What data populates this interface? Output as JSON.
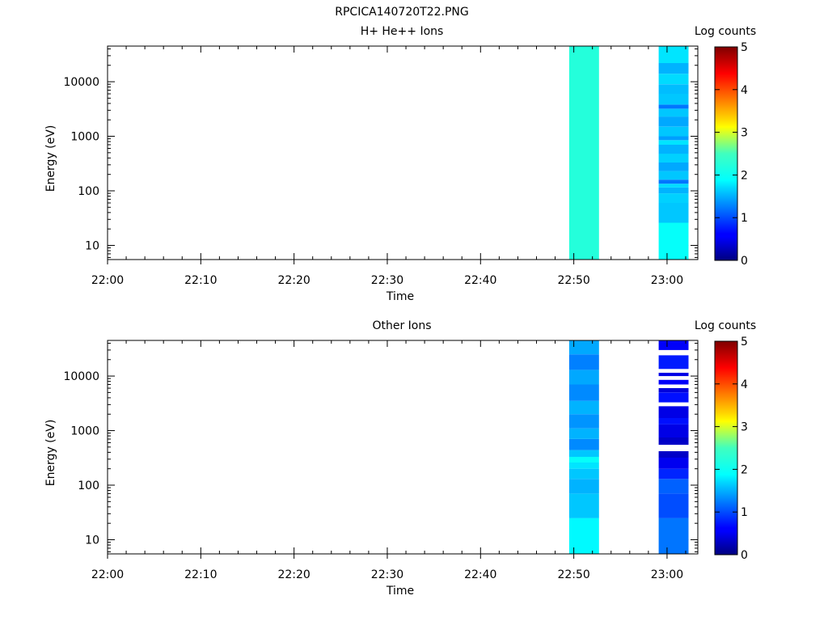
{
  "title": "RPCICA140720T22.PNG",
  "colorbar": {
    "label": "Log counts",
    "range": [
      0,
      5
    ],
    "ticks": [
      "0",
      "1",
      "2",
      "3",
      "4",
      "5"
    ]
  },
  "chart_data": [
    {
      "type": "heatmap",
      "title": "H+ He++ Ions",
      "xlabel": "Time",
      "ylabel": "Energy (eV)",
      "x_ticks": [
        "22:00",
        "22:10",
        "22:20",
        "22:30",
        "22:40",
        "22:50",
        "23:00"
      ],
      "y_ticks": [
        "10",
        "100",
        "1000",
        "10000"
      ],
      "yscale": "log",
      "ylim": [
        5.5,
        45000
      ],
      "colorscale": "jet",
      "zlim": [
        0,
        5
      ],
      "columns": [
        {
          "time_start": "22:49.5",
          "time_end": "22:52.7",
          "bins": [
            {
              "e_low": 5.5,
              "e_high": 45000,
              "log_counts": 2.05
            }
          ]
        },
        {
          "time_start": "22:59.1",
          "time_end": "23:02.3",
          "bins": [
            {
              "e_low": 5.5,
              "e_high": 26,
              "log_counts": 1.9
            },
            {
              "e_low": 26,
              "e_high": 60,
              "log_counts": 1.6
            },
            {
              "e_low": 60,
              "e_high": 90,
              "log_counts": 1.65
            },
            {
              "e_low": 90,
              "e_high": 115,
              "log_counts": 1.5
            },
            {
              "e_low": 115,
              "e_high": 135,
              "log_counts": 1.7
            },
            {
              "e_low": 135,
              "e_high": 160,
              "log_counts": 1.2
            },
            {
              "e_low": 160,
              "e_high": 230,
              "log_counts": 1.6
            },
            {
              "e_low": 230,
              "e_high": 330,
              "log_counts": 1.45
            },
            {
              "e_low": 330,
              "e_high": 480,
              "log_counts": 1.65
            },
            {
              "e_low": 480,
              "e_high": 700,
              "log_counts": 1.5
            },
            {
              "e_low": 700,
              "e_high": 850,
              "log_counts": 1.75
            },
            {
              "e_low": 850,
              "e_high": 1000,
              "log_counts": 1.4
            },
            {
              "e_low": 1000,
              "e_high": 1500,
              "log_counts": 1.6
            },
            {
              "e_low": 1500,
              "e_high": 2300,
              "log_counts": 1.45
            },
            {
              "e_low": 2300,
              "e_high": 3200,
              "log_counts": 1.6
            },
            {
              "e_low": 3200,
              "e_high": 3800,
              "log_counts": 1.2
            },
            {
              "e_low": 3800,
              "e_high": 6000,
              "log_counts": 1.6
            },
            {
              "e_low": 6000,
              "e_high": 9000,
              "log_counts": 1.55
            },
            {
              "e_low": 9000,
              "e_high": 14000,
              "log_counts": 1.7
            },
            {
              "e_low": 14000,
              "e_high": 22000,
              "log_counts": 1.5
            },
            {
              "e_low": 22000,
              "e_high": 45000,
              "log_counts": 1.75
            }
          ]
        }
      ]
    },
    {
      "type": "heatmap",
      "title": "Other Ions",
      "xlabel": "Time",
      "ylabel": "Energy (eV)",
      "x_ticks": [
        "22:00",
        "22:10",
        "22:20",
        "22:30",
        "22:40",
        "22:50",
        "23:00"
      ],
      "y_ticks": [
        "10",
        "100",
        "1000",
        "10000"
      ],
      "yscale": "log",
      "ylim": [
        5.5,
        45000
      ],
      "colorscale": "jet",
      "zlim": [
        0,
        5
      ],
      "columns": [
        {
          "time_start": "22:49.5",
          "time_end": "22:52.7",
          "bins": [
            {
              "e_low": 5.5,
              "e_high": 25,
              "log_counts": 1.85
            },
            {
              "e_low": 25,
              "e_high": 70,
              "log_counts": 1.6
            },
            {
              "e_low": 70,
              "e_high": 130,
              "log_counts": 1.5
            },
            {
              "e_low": 130,
              "e_high": 200,
              "log_counts": 1.6
            },
            {
              "e_low": 200,
              "e_high": 260,
              "log_counts": 1.75
            },
            {
              "e_low": 260,
              "e_high": 330,
              "log_counts": 1.9
            },
            {
              "e_low": 330,
              "e_high": 440,
              "log_counts": 1.6
            },
            {
              "e_low": 440,
              "e_high": 700,
              "log_counts": 1.3
            },
            {
              "e_low": 700,
              "e_high": 1100,
              "log_counts": 1.5
            },
            {
              "e_low": 1100,
              "e_high": 2000,
              "log_counts": 1.35
            },
            {
              "e_low": 2000,
              "e_high": 3500,
              "log_counts": 1.5
            },
            {
              "e_low": 3500,
              "e_high": 7000,
              "log_counts": 1.3
            },
            {
              "e_low": 7000,
              "e_high": 13000,
              "log_counts": 1.45
            },
            {
              "e_low": 13000,
              "e_high": 25000,
              "log_counts": 1.25
            },
            {
              "e_low": 25000,
              "e_high": 45000,
              "log_counts": 1.45
            }
          ]
        },
        {
          "time_start": "22:59.1",
          "time_end": "23:02.3",
          "bins": [
            {
              "e_low": 5.5,
              "e_high": 25,
              "log_counts": 1.2
            },
            {
              "e_low": 25,
              "e_high": 70,
              "log_counts": 1.0
            },
            {
              "e_low": 70,
              "e_high": 130,
              "log_counts": 1.1
            },
            {
              "e_low": 130,
              "e_high": 200,
              "log_counts": 0.8
            },
            {
              "e_low": 200,
              "e_high": 320,
              "log_counts": 0.55
            },
            {
              "e_low": 320,
              "e_high": 420,
              "log_counts": 0.35
            },
            {
              "e_low": 550,
              "e_high": 750,
              "log_counts": 0.35
            },
            {
              "e_low": 750,
              "e_high": 1300,
              "log_counts": 0.5
            },
            {
              "e_low": 1300,
              "e_high": 1700,
              "log_counts": 0.7
            },
            {
              "e_low": 1700,
              "e_high": 2800,
              "log_counts": 0.5
            },
            {
              "e_low": 3300,
              "e_high": 5000,
              "log_counts": 0.7
            },
            {
              "e_low": 5000,
              "e_high": 6000,
              "log_counts": 0.45
            },
            {
              "e_low": 7000,
              "e_high": 8500,
              "log_counts": 0.6
            },
            {
              "e_low": 10000,
              "e_high": 11500,
              "log_counts": 0.5
            },
            {
              "e_low": 13500,
              "e_high": 24000,
              "log_counts": 0.75
            },
            {
              "e_low": 30000,
              "e_high": 45000,
              "log_counts": 0.6
            }
          ]
        }
      ]
    }
  ]
}
